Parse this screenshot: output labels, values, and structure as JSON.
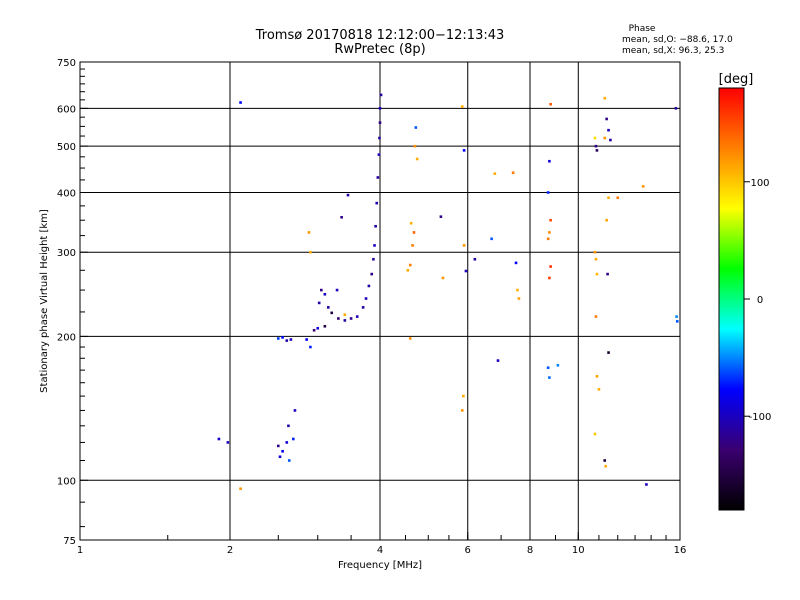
{
  "chart_data": {
    "type": "scatter",
    "title": "Tromsø 20170818 12:12:00−12:13:43",
    "subtitle": "RwPretec (8p)",
    "xlabel": "Frequency [MHz]",
    "ylabel": "Stationary phase Virtual Height [km]",
    "x_scale": "log",
    "y_scale": "log",
    "xlim": [
      1,
      16
    ],
    "ylim": [
      75,
      750
    ],
    "x_ticks": [
      1,
      2,
      4,
      6,
      8,
      10,
      16
    ],
    "y_ticks": [
      75,
      100,
      200,
      300,
      400,
      500,
      600,
      750
    ],
    "x_gridlines": [
      2,
      4,
      6,
      8,
      10
    ],
    "y_gridlines": [
      100,
      200,
      300,
      400,
      500,
      600
    ],
    "phase_header": "Phase",
    "phase_stats": [
      "mean, sd,O: −88.6, 17.0",
      "mean, sd,X:  96.3, 25.3"
    ],
    "colorbar": {
      "label": "[deg]",
      "range": [
        -180,
        180
      ],
      "ticks": [
        100,
        0,
        -100
      ],
      "colors": [
        "#000000",
        "#3a0070",
        "#0000ff",
        "#00ffff",
        "#00ff00",
        "#ffff00",
        "#ff8000",
        "#ff0000"
      ]
    },
    "points": [
      [
        1.9,
        122,
        -95
      ],
      [
        1.98,
        120,
        -100
      ],
      [
        2.1,
        617,
        -80
      ],
      [
        2.1,
        96,
        120
      ],
      [
        2.5,
        198,
        -65
      ],
      [
        2.55,
        199,
        -75
      ],
      [
        2.6,
        196,
        -110
      ],
      [
        2.65,
        197,
        -100
      ],
      [
        2.5,
        118,
        -120
      ],
      [
        2.52,
        112,
        -90
      ],
      [
        2.55,
        115,
        -80
      ],
      [
        2.6,
        120,
        -90
      ],
      [
        2.62,
        130,
        -110
      ],
      [
        2.7,
        140,
        -100
      ],
      [
        2.68,
        122,
        -70
      ],
      [
        2.63,
        110,
        -60
      ],
      [
        2.85,
        197,
        -80
      ],
      [
        2.9,
        190,
        -70
      ],
      [
        2.95,
        206,
        -130
      ],
      [
        3.0,
        208,
        -90
      ],
      [
        3.02,
        235,
        -110
      ],
      [
        3.05,
        250,
        -120
      ],
      [
        3.1,
        245,
        -100
      ],
      [
        3.15,
        230,
        -110
      ],
      [
        3.2,
        224,
        -150
      ],
      [
        3.3,
        218,
        -130
      ],
      [
        3.4,
        216,
        -110
      ],
      [
        3.5,
        218,
        -120
      ],
      [
        3.6,
        220,
        -100
      ],
      [
        3.7,
        230,
        -110
      ],
      [
        3.75,
        240,
        -100
      ],
      [
        3.8,
        255,
        -110
      ],
      [
        3.85,
        270,
        -120
      ],
      [
        3.88,
        290,
        -110
      ],
      [
        3.9,
        310,
        -100
      ],
      [
        3.92,
        340,
        -110
      ],
      [
        3.94,
        380,
        -105
      ],
      [
        3.96,
        430,
        -110
      ],
      [
        3.98,
        480,
        -100
      ],
      [
        3.99,
        520,
        -110
      ],
      [
        4.0,
        560,
        -120
      ],
      [
        4.0,
        600,
        -100
      ],
      [
        4.02,
        640,
        -110
      ],
      [
        3.45,
        395,
        -110
      ],
      [
        3.35,
        355,
        -120
      ],
      [
        3.28,
        250,
        -100
      ],
      [
        2.88,
        330,
        120
      ],
      [
        2.9,
        300,
        110
      ],
      [
        3.1,
        210,
        -150
      ],
      [
        3.4,
        222,
        110
      ],
      [
        4.6,
        198,
        120
      ],
      [
        4.55,
        275,
        110
      ],
      [
        4.6,
        282,
        130
      ],
      [
        4.65,
        310,
        130
      ],
      [
        4.62,
        345,
        110
      ],
      [
        4.68,
        330,
        140
      ],
      [
        4.72,
        547,
        -60
      ],
      [
        4.7,
        500,
        120
      ],
      [
        4.75,
        470,
        110
      ],
      [
        5.3,
        356,
        -120
      ],
      [
        5.35,
        265,
        120
      ],
      [
        5.85,
        605,
        110
      ],
      [
        5.9,
        490,
        -80
      ],
      [
        5.95,
        274,
        -100
      ],
      [
        5.9,
        310,
        120
      ],
      [
        5.88,
        150,
        110
      ],
      [
        5.85,
        140,
        120
      ],
      [
        6.2,
        290,
        -110
      ],
      [
        6.7,
        320,
        -60
      ],
      [
        6.8,
        438,
        110
      ],
      [
        6.9,
        178,
        -100
      ],
      [
        7.4,
        440,
        130
      ],
      [
        7.5,
        285,
        -80
      ],
      [
        7.55,
        250,
        110
      ],
      [
        7.6,
        240,
        115
      ],
      [
        8.8,
        612,
        145
      ],
      [
        8.75,
        465,
        -90
      ],
      [
        8.7,
        400,
        -70
      ],
      [
        8.8,
        350,
        150
      ],
      [
        8.75,
        330,
        125
      ],
      [
        8.7,
        320,
        130
      ],
      [
        8.8,
        280,
        160
      ],
      [
        8.75,
        265,
        155
      ],
      [
        8.7,
        172,
        -60
      ],
      [
        8.75,
        164,
        -55
      ],
      [
        9.1,
        174,
        -50
      ],
      [
        10.8,
        520,
        90
      ],
      [
        10.85,
        500,
        -120
      ],
      [
        10.9,
        490,
        -140
      ],
      [
        10.8,
        300,
        120
      ],
      [
        10.85,
        290,
        110
      ],
      [
        10.9,
        270,
        105
      ],
      [
        10.85,
        220,
        130
      ],
      [
        10.9,
        165,
        115
      ],
      [
        10.8,
        125,
        100
      ],
      [
        11.0,
        155,
        110
      ],
      [
        11.3,
        630,
        110
      ],
      [
        11.4,
        570,
        -120
      ],
      [
        11.5,
        540,
        -100
      ],
      [
        11.3,
        520,
        120
      ],
      [
        11.6,
        515,
        -110
      ],
      [
        11.5,
        390,
        110
      ],
      [
        11.4,
        350,
        115
      ],
      [
        11.45,
        270,
        -120
      ],
      [
        11.5,
        185,
        -160
      ],
      [
        11.3,
        110,
        -150
      ],
      [
        11.35,
        107,
        110
      ],
      [
        12.0,
        390,
        130
      ],
      [
        13.5,
        412,
        120
      ],
      [
        13.7,
        98,
        -100
      ],
      [
        15.7,
        600,
        -110
      ],
      [
        15.8,
        215,
        -60
      ],
      [
        15.75,
        220,
        -50
      ]
    ]
  }
}
